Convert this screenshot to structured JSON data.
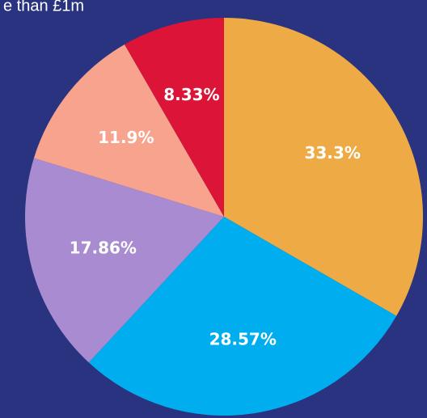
{
  "chart_data": {
    "type": "pie",
    "title": "e than £1m",
    "values": [
      33.3,
      28.57,
      17.86,
      11.9,
      8.33
    ],
    "value_labels": [
      "33.3%",
      "28.57%",
      "17.86%",
      "11.9%",
      "8.33%"
    ],
    "colors": [
      "#eeaa45",
      "#00aeef",
      "#a88bd0",
      "#f8a38e",
      "#dc1437"
    ]
  }
}
